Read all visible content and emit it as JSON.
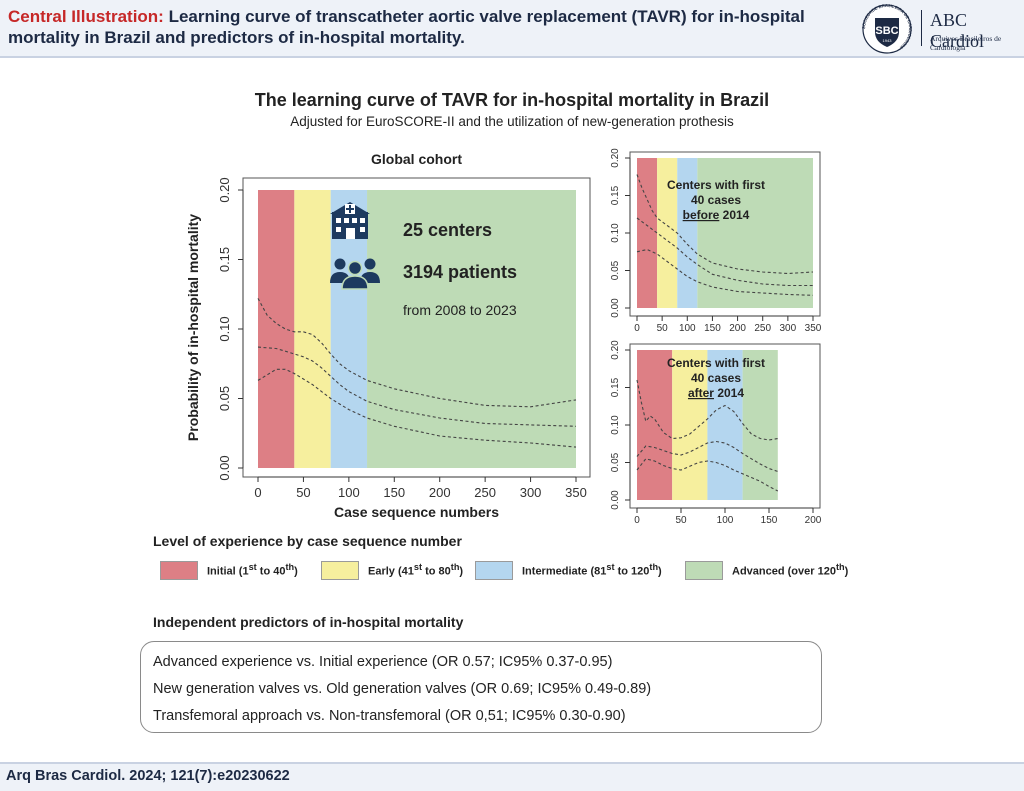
{
  "header": {
    "label": "Central Illustration:",
    "title": " Learning curve of transcatheter aortic valve replacement (TAVR) for in-hospital mortality in Brazil and predictors of in-hospital mortality."
  },
  "logo": {
    "seal_text": "SBC",
    "seal_ring_text": "SOCIEDADE BRASILEIRA DE CARDIOLOGIA",
    "seal_year": "1943",
    "name": "ABC Cardiol",
    "subtitle": "Arquivos Brasileiros de Cardiologia"
  },
  "main": {
    "title": "The learning curve of TAVR for in-hospital mortality in Brazil",
    "subtitle": "Adjusted for EuroSCORE-II and the utilization of new-generation prothesis"
  },
  "stats": {
    "centers": "25 centers",
    "patients": "3194 patients",
    "period": "from 2008 to 2023"
  },
  "chart_data": [
    {
      "type": "line",
      "title": "Global cohort",
      "xlabel": "Case sequence numbers",
      "ylabel": "Probability of in-hospital mortality",
      "xlim": [
        0,
        350
      ],
      "ylim": [
        0,
        0.2
      ],
      "xticks": [
        "0",
        "50",
        "100",
        "150",
        "200",
        "250",
        "300",
        "350"
      ],
      "yticks": [
        "0.00",
        "0.05",
        "0.10",
        "0.15",
        "0.20"
      ],
      "bands": [
        {
          "from": 0,
          "to": 40,
          "color": "#dd7f85"
        },
        {
          "from": 40,
          "to": 80,
          "color": "#f6ef9e"
        },
        {
          "from": 80,
          "to": 120,
          "color": "#b4d6ef"
        },
        {
          "from": 120,
          "to": 350,
          "color": "#bedbb6"
        }
      ],
      "series": [
        {
          "x": [
            0,
            10,
            20,
            30,
            40,
            50,
            60,
            70,
            80,
            90,
            100,
            120,
            150,
            200,
            250,
            300,
            350
          ],
          "values": [
            0.122,
            0.11,
            0.104,
            0.1,
            0.098,
            0.098,
            0.096,
            0.09,
            0.082,
            0.075,
            0.07,
            0.063,
            0.057,
            0.05,
            0.045,
            0.044,
            0.049
          ]
        },
        {
          "x": [
            0,
            20,
            30,
            40,
            50,
            60,
            70,
            80,
            90,
            100,
            120,
            150,
            200,
            250,
            300,
            350
          ],
          "values": [
            0.087,
            0.086,
            0.084,
            0.082,
            0.08,
            0.077,
            0.072,
            0.066,
            0.06,
            0.055,
            0.048,
            0.042,
            0.036,
            0.032,
            0.031,
            0.03
          ]
        },
        {
          "x": [
            0,
            10,
            20,
            30,
            40,
            50,
            60,
            70,
            80,
            90,
            100,
            120,
            150,
            200,
            250,
            300,
            350
          ],
          "values": [
            0.063,
            0.067,
            0.071,
            0.071,
            0.068,
            0.064,
            0.06,
            0.055,
            0.05,
            0.046,
            0.042,
            0.036,
            0.03,
            0.023,
            0.02,
            0.018,
            0.015
          ]
        }
      ]
    },
    {
      "type": "line",
      "title": "Centers with first 40 cases before 2014",
      "title_lines": [
        "Centers with first",
        "40 cases",
        "before",
        " 2014"
      ],
      "xlim": [
        0,
        350
      ],
      "ylim": [
        0,
        0.2
      ],
      "xticks": [
        "0",
        "50",
        "100",
        "150",
        "200",
        "250",
        "300",
        "350"
      ],
      "yticks": [
        "0.00",
        "0.05",
        "0.10",
        "0.15",
        "0.20"
      ],
      "bands": [
        {
          "from": 0,
          "to": 40,
          "color": "#dd7f85"
        },
        {
          "from": 40,
          "to": 80,
          "color": "#f6ef9e"
        },
        {
          "from": 80,
          "to": 120,
          "color": "#b4d6ef"
        },
        {
          "from": 120,
          "to": 350,
          "color": "#bedbb6"
        }
      ],
      "series": [
        {
          "x": [
            0,
            10,
            20,
            30,
            40,
            60,
            80,
            100,
            120,
            150,
            200,
            250,
            300,
            350
          ],
          "values": [
            0.178,
            0.16,
            0.145,
            0.13,
            0.12,
            0.11,
            0.1,
            0.085,
            0.072,
            0.06,
            0.052,
            0.048,
            0.046,
            0.048
          ]
        },
        {
          "x": [
            0,
            20,
            40,
            60,
            80,
            100,
            120,
            150,
            200,
            250,
            300,
            350
          ],
          "values": [
            0.12,
            0.11,
            0.1,
            0.09,
            0.08,
            0.068,
            0.058,
            0.045,
            0.037,
            0.032,
            0.03,
            0.03
          ]
        },
        {
          "x": [
            0,
            20,
            40,
            60,
            80,
            100,
            120,
            150,
            200,
            250,
            300,
            350
          ],
          "values": [
            0.075,
            0.078,
            0.072,
            0.062,
            0.052,
            0.042,
            0.035,
            0.028,
            0.022,
            0.02,
            0.018,
            0.017
          ]
        }
      ]
    },
    {
      "type": "line",
      "title": "Centers with first 40 cases after 2014",
      "title_lines": [
        "Centers with first",
        "40 cases",
        "after",
        " 2014"
      ],
      "xlim": [
        0,
        200
      ],
      "ylim": [
        0,
        0.2
      ],
      "xticks": [
        "0",
        "50",
        "100",
        "150",
        "200"
      ],
      "yticks": [
        "0.00",
        "0.05",
        "0.10",
        "0.15",
        "0.20"
      ],
      "bands": [
        {
          "from": 0,
          "to": 40,
          "color": "#dd7f85"
        },
        {
          "from": 40,
          "to": 80,
          "color": "#f6ef9e"
        },
        {
          "from": 80,
          "to": 120,
          "color": "#b4d6ef"
        },
        {
          "from": 120,
          "to": 160,
          "color": "#bedbb6"
        }
      ],
      "series": [
        {
          "x": [
            0,
            5,
            10,
            15,
            20,
            30,
            40,
            50,
            60,
            70,
            80,
            90,
            100,
            110,
            120,
            130,
            140,
            150,
            160
          ],
          "values": [
            0.16,
            0.13,
            0.105,
            0.112,
            0.108,
            0.09,
            0.082,
            0.083,
            0.088,
            0.098,
            0.108,
            0.12,
            0.126,
            0.118,
            0.102,
            0.088,
            0.082,
            0.08,
            0.082
          ]
        },
        {
          "x": [
            0,
            10,
            20,
            30,
            40,
            50,
            60,
            70,
            80,
            90,
            100,
            110,
            120,
            130,
            140,
            150,
            160
          ],
          "values": [
            0.058,
            0.072,
            0.07,
            0.066,
            0.062,
            0.06,
            0.064,
            0.07,
            0.076,
            0.078,
            0.076,
            0.07,
            0.062,
            0.055,
            0.048,
            0.042,
            0.038
          ]
        },
        {
          "x": [
            0,
            10,
            20,
            30,
            40,
            50,
            60,
            70,
            80,
            90,
            100,
            110,
            120,
            130,
            140,
            150,
            160
          ],
          "values": [
            0.04,
            0.055,
            0.052,
            0.046,
            0.042,
            0.04,
            0.045,
            0.05,
            0.052,
            0.05,
            0.046,
            0.04,
            0.035,
            0.03,
            0.025,
            0.018,
            0.012
          ]
        }
      ]
    }
  ],
  "legend": {
    "title": "Level of experience by case sequence number",
    "items": [
      {
        "label": "Initial (1",
        "sup1": "st",
        "mid": " to 40",
        "sup2": "th",
        "end": ")",
        "color": "#dd7f85"
      },
      {
        "label": "Early (41",
        "sup1": "st",
        "mid": " to 80",
        "sup2": "th",
        "end": ")",
        "color": "#f6ef9e"
      },
      {
        "label": "Intermediate (81",
        "sup1": "st",
        "mid": " to 120",
        "sup2": "th",
        "end": ")",
        "color": "#b4d6ef"
      },
      {
        "label": "Advanced (over 120",
        "sup1": "th",
        "mid": ")",
        "sup2": "",
        "end": "",
        "color": "#bedbb6"
      }
    ]
  },
  "predictors": {
    "title": "Independent predictors of in-hospital mortality",
    "items": [
      "Advanced experience vs. Initial experience (OR 0.57; IC95% 0.37-0.95)",
      "New generation valves vs. Old generation valves (OR 0.69; IC95% 0.49-0.89)",
      "Transfemoral approach vs. Non-transfemoral (OR 0,51; IC95% 0.30-0.90)"
    ]
  },
  "footer": {
    "citation": "Arq Bras Cardiol. 2024; 121(7):e20230622"
  }
}
